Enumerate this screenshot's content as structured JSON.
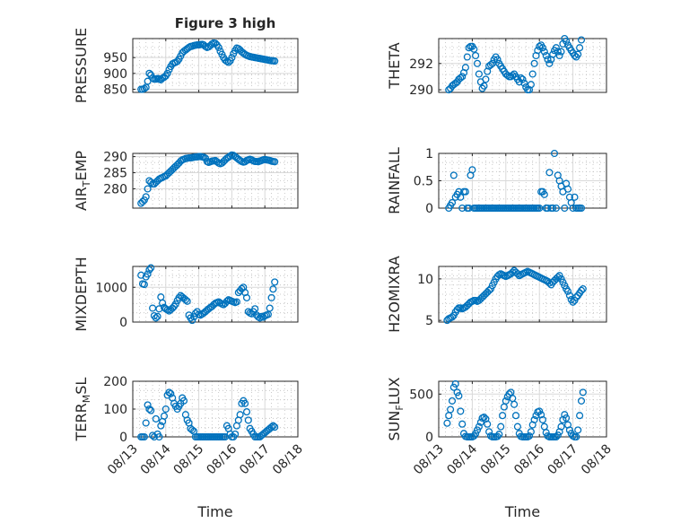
{
  "title": "Figure 3 high",
  "x_label": "Time",
  "colors": {
    "marker": "#0072bd",
    "axis": "#262626",
    "grid": "#d9d9d9"
  },
  "chart_data": [
    {
      "type": "scatter",
      "ylabel": "PRESSURE",
      "xticks": [],
      "ylim": [
        840,
        1010
      ],
      "yticks": [
        850,
        900,
        950
      ],
      "x": [
        0.25,
        0.3,
        0.35,
        0.4,
        0.45,
        0.5,
        0.55,
        0.6,
        0.65,
        0.7,
        0.75,
        0.8,
        0.85,
        0.9,
        0.95,
        1.0,
        1.05,
        1.1,
        1.15,
        1.2,
        1.25,
        1.3,
        1.35,
        1.4,
        1.45,
        1.5,
        1.55,
        1.6,
        1.65,
        1.7,
        1.75,
        1.8,
        1.85,
        1.9,
        1.95,
        2.0,
        2.05,
        2.1,
        2.15,
        2.2,
        2.25,
        2.3,
        2.35,
        2.4,
        2.45,
        2.5,
        2.55,
        2.6,
        2.65,
        2.7,
        2.75,
        2.8,
        2.85,
        2.9,
        2.95,
        3.0,
        3.05,
        3.1,
        3.15,
        3.2,
        3.25,
        3.3,
        3.35,
        3.4,
        3.45,
        3.5,
        3.55,
        3.6,
        3.65,
        3.7,
        3.75,
        3.8,
        3.85,
        3.9,
        3.95,
        4.0,
        4.05,
        4.1,
        4.15,
        4.2,
        4.25,
        4.3
      ],
      "y": [
        850,
        850,
        852,
        856,
        875,
        900,
        895,
        885,
        882,
        882,
        884,
        882,
        880,
        885,
        888,
        892,
        900,
        912,
        922,
        930,
        933,
        935,
        938,
        945,
        955,
        965,
        970,
        974,
        978,
        982,
        985,
        986,
        988,
        989,
        990,
        990,
        991,
        992,
        990,
        985,
        982,
        984,
        988,
        993,
        996,
        995,
        990,
        982,
        970,
        960,
        950,
        942,
        938,
        935,
        940,
        950,
        962,
        972,
        980,
        978,
        974,
        968,
        964,
        960,
        957,
        955,
        953,
        952,
        951,
        950,
        949,
        948,
        947,
        946,
        945,
        944,
        943,
        942,
        941,
        940,
        940,
        939
      ]
    },
    {
      "type": "scatter",
      "ylabel": "THETA",
      "xticks": [],
      "ylim": [
        289.8,
        293.9
      ],
      "yticks": [
        290,
        292
      ],
      "x": [
        0.3,
        0.35,
        0.4,
        0.45,
        0.5,
        0.55,
        0.6,
        0.65,
        0.7,
        0.75,
        0.8,
        0.85,
        0.9,
        0.95,
        1.0,
        1.05,
        1.1,
        1.15,
        1.2,
        1.25,
        1.3,
        1.35,
        1.4,
        1.45,
        1.5,
        1.55,
        1.6,
        1.65,
        1.7,
        1.75,
        1.8,
        1.85,
        1.9,
        1.95,
        2.0,
        2.05,
        2.1,
        2.15,
        2.2,
        2.25,
        2.3,
        2.35,
        2.4,
        2.45,
        2.5,
        2.55,
        2.6,
        2.65,
        2.7,
        2.75,
        2.8,
        2.85,
        2.9,
        2.95,
        3.0,
        3.05,
        3.1,
        3.15,
        3.2,
        3.25,
        3.3,
        3.35,
        3.4,
        3.45,
        3.5,
        3.55,
        3.6,
        3.65,
        3.7,
        3.75,
        3.8,
        3.85,
        3.9,
        3.95,
        4.0,
        4.05,
        4.1,
        4.15,
        4.2,
        4.25
      ],
      "y": [
        290.0,
        290.1,
        290.3,
        290.4,
        290.5,
        290.6,
        290.8,
        290.9,
        291.0,
        291.3,
        291.7,
        292.5,
        293.2,
        293.3,
        293.3,
        293.1,
        292.6,
        292.0,
        291.2,
        290.6,
        290.1,
        290.3,
        290.8,
        291.4,
        291.8,
        291.9,
        292.0,
        292.3,
        292.5,
        292.3,
        292.0,
        291.8,
        291.6,
        291.4,
        291.2,
        291.1,
        291.0,
        291.0,
        291.1,
        291.2,
        291.0,
        290.8,
        290.6,
        290.9,
        290.8,
        290.5,
        290.2,
        290.0,
        290.0,
        290.4,
        291.2,
        292.0,
        292.6,
        293.0,
        293.3,
        293.4,
        293.2,
        292.9,
        292.6,
        292.3,
        292.0,
        292.3,
        292.7,
        293.0,
        293.2,
        292.9,
        292.6,
        292.9,
        293.5,
        293.9,
        293.7,
        293.4,
        293.2,
        293.0,
        292.8,
        292.6,
        292.5,
        292.7,
        293.2,
        293.8
      ]
    },
    {
      "type": "scatter",
      "ylabel": "AIR_TEMP",
      "xticks": [],
      "ylim": [
        274,
        291
      ],
      "yticks": [
        280,
        285,
        290
      ],
      "x": [
        0.25,
        0.3,
        0.35,
        0.4,
        0.45,
        0.5,
        0.55,
        0.6,
        0.65,
        0.7,
        0.75,
        0.8,
        0.85,
        0.9,
        0.95,
        1.0,
        1.05,
        1.1,
        1.15,
        1.2,
        1.25,
        1.3,
        1.35,
        1.4,
        1.45,
        1.5,
        1.55,
        1.6,
        1.65,
        1.7,
        1.75,
        1.8,
        1.85,
        1.9,
        1.95,
        2.0,
        2.05,
        2.1,
        2.15,
        2.2,
        2.25,
        2.3,
        2.35,
        2.4,
        2.45,
        2.5,
        2.55,
        2.6,
        2.65,
        2.7,
        2.75,
        2.8,
        2.85,
        2.9,
        2.95,
        3.0,
        3.05,
        3.1,
        3.15,
        3.2,
        3.25,
        3.3,
        3.35,
        3.4,
        3.45,
        3.5,
        3.55,
        3.6,
        3.65,
        3.7,
        3.75,
        3.8,
        3.85,
        3.9,
        3.95,
        4.0,
        4.05,
        4.1,
        4.15,
        4.2,
        4.25,
        4.3
      ],
      "y": [
        275.5,
        276.0,
        276.5,
        277.5,
        280.0,
        282.5,
        282.0,
        281.5,
        281.5,
        282.0,
        282.5,
        283.0,
        283.3,
        283.5,
        283.8,
        284.0,
        284.5,
        285.0,
        285.5,
        286.0,
        286.5,
        287.0,
        287.5,
        288.0,
        288.6,
        289.0,
        289.2,
        289.4,
        289.5,
        289.6,
        289.6,
        289.7,
        289.8,
        289.9,
        289.9,
        290.0,
        290.0,
        289.9,
        289.8,
        289.5,
        288.5,
        288.2,
        288.4,
        288.6,
        288.7,
        288.8,
        288.4,
        288.0,
        287.8,
        288.0,
        288.5,
        289.0,
        289.5,
        289.8,
        290.2,
        290.5,
        290.4,
        290.0,
        289.6,
        289.2,
        288.8,
        288.5,
        288.3,
        288.4,
        288.8,
        289.0,
        289.2,
        289.0,
        288.7,
        288.5,
        288.5,
        288.4,
        288.6,
        288.8,
        289.0,
        289.1,
        289.0,
        288.9,
        288.8,
        288.6,
        288.5,
        288.4
      ]
    },
    {
      "type": "scatter",
      "ylabel": "RAINFALL",
      "xticks": [],
      "ylim": [
        0,
        1
      ],
      "yticks": [
        0,
        0.5,
        1
      ],
      "x": [
        0.3,
        0.35,
        0.4,
        0.45,
        0.5,
        0.55,
        0.6,
        0.65,
        0.7,
        0.75,
        0.8,
        0.85,
        0.9,
        0.95,
        1.0,
        1.05,
        1.1,
        1.15,
        1.2,
        1.25,
        1.3,
        1.35,
        1.4,
        1.45,
        1.5,
        1.55,
        1.6,
        1.65,
        1.7,
        1.75,
        1.8,
        1.85,
        1.9,
        1.95,
        2.0,
        2.05,
        2.1,
        2.15,
        2.2,
        2.25,
        2.3,
        2.35,
        2.4,
        2.45,
        2.5,
        2.55,
        2.6,
        2.65,
        2.7,
        2.75,
        2.8,
        2.85,
        2.9,
        2.95,
        3.0,
        3.05,
        3.1,
        3.15,
        3.2,
        3.25,
        3.3,
        3.35,
        3.4,
        3.45,
        3.5,
        3.55,
        3.6,
        3.65,
        3.7,
        3.75,
        3.8,
        3.85,
        3.9,
        3.95,
        4.0,
        4.05,
        4.1,
        4.15,
        4.2,
        4.25
      ],
      "y": [
        0.0,
        0.05,
        0.1,
        0.6,
        0.2,
        0.25,
        0.3,
        0.2,
        0.0,
        0.3,
        0.3,
        0.0,
        0.0,
        0.6,
        0.7,
        0.0,
        0.0,
        0.0,
        0.0,
        0.0,
        0.0,
        0.0,
        0.0,
        0.0,
        0.0,
        0.0,
        0.0,
        0.0,
        0.0,
        0.0,
        0.0,
        0.0,
        0.0,
        0.0,
        0.0,
        0.0,
        0.0,
        0.0,
        0.0,
        0.0,
        0.0,
        0.0,
        0.0,
        0.0,
        0.0,
        0.0,
        0.0,
        0.0,
        0.0,
        0.0,
        0.0,
        0.0,
        0.0,
        0.0,
        0.0,
        0.3,
        0.3,
        0.25,
        0.0,
        0.0,
        0.65,
        0.0,
        0.0,
        1.0,
        0.0,
        0.6,
        0.5,
        0.4,
        0.3,
        0.0,
        0.45,
        0.35,
        0.2,
        0.1,
        0.0,
        0.2,
        0.0,
        0.0,
        0.0,
        0.0
      ]
    },
    {
      "type": "scatter",
      "ylabel": "MIXDEPTH",
      "xticks": [],
      "ylim": [
        0,
        1600
      ],
      "yticks": [
        0,
        1000
      ],
      "x": [
        0.25,
        0.3,
        0.35,
        0.4,
        0.45,
        0.5,
        0.55,
        0.6,
        0.65,
        0.7,
        0.75,
        0.8,
        0.85,
        0.9,
        0.95,
        1.0,
        1.05,
        1.1,
        1.15,
        1.2,
        1.25,
        1.3,
        1.35,
        1.4,
        1.45,
        1.5,
        1.55,
        1.6,
        1.65,
        1.7,
        1.75,
        1.8,
        1.85,
        1.9,
        1.95,
        2.0,
        2.05,
        2.1,
        2.15,
        2.2,
        2.25,
        2.3,
        2.35,
        2.4,
        2.45,
        2.5,
        2.55,
        2.6,
        2.65,
        2.7,
        2.75,
        2.8,
        2.85,
        2.9,
        2.95,
        3.0,
        3.05,
        3.1,
        3.15,
        3.2,
        3.25,
        3.3,
        3.35,
        3.4,
        3.45,
        3.5,
        3.55,
        3.6,
        3.65,
        3.7,
        3.75,
        3.8,
        3.85,
        3.9,
        3.95,
        4.0,
        4.05,
        4.1,
        4.15,
        4.2,
        4.25,
        4.3
      ],
      "y": [
        1350,
        1100,
        1080,
        1300,
        1380,
        1500,
        1560,
        400,
        180,
        120,
        160,
        380,
        720,
        550,
        420,
        380,
        350,
        320,
        360,
        400,
        450,
        520,
        620,
        700,
        760,
        720,
        680,
        640,
        600,
        200,
        120,
        50,
        150,
        250,
        300,
        220,
        200,
        230,
        260,
        300,
        340,
        380,
        420,
        450,
        500,
        540,
        560,
        580,
        550,
        520,
        500,
        540,
        600,
        640,
        620,
        600,
        580,
        560,
        580,
        850,
        900,
        960,
        1000,
        850,
        700,
        300,
        260,
        240,
        300,
        380,
        200,
        150,
        120,
        160,
        140,
        180,
        200,
        220,
        400,
        700,
        950,
        1150
      ]
    },
    {
      "type": "scatter",
      "ylabel": "H2OMIXRA",
      "xticks": [],
      "ylim": [
        4.8,
        11.5
      ],
      "yticks": [
        5,
        10
      ],
      "x": [
        0.25,
        0.3,
        0.35,
        0.4,
        0.45,
        0.5,
        0.55,
        0.6,
        0.65,
        0.7,
        0.75,
        0.8,
        0.85,
        0.9,
        0.95,
        1.0,
        1.05,
        1.1,
        1.15,
        1.2,
        1.25,
        1.3,
        1.35,
        1.4,
        1.45,
        1.5,
        1.55,
        1.6,
        1.65,
        1.7,
        1.75,
        1.8,
        1.85,
        1.9,
        1.95,
        2.0,
        2.05,
        2.1,
        2.15,
        2.2,
        2.25,
        2.3,
        2.35,
        2.4,
        2.45,
        2.5,
        2.55,
        2.6,
        2.65,
        2.7,
        2.75,
        2.8,
        2.85,
        2.9,
        2.95,
        3.0,
        3.05,
        3.1,
        3.15,
        3.2,
        3.25,
        3.3,
        3.35,
        3.4,
        3.45,
        3.5,
        3.55,
        3.6,
        3.65,
        3.7,
        3.75,
        3.8,
        3.85,
        3.9,
        3.95,
        4.0,
        4.05,
        4.1,
        4.15,
        4.2,
        4.25,
        4.3
      ],
      "y": [
        5.0,
        5.2,
        5.3,
        5.4,
        5.6,
        6.0,
        6.3,
        6.5,
        6.5,
        6.4,
        6.5,
        6.6,
        6.8,
        7.0,
        7.2,
        7.3,
        7.4,
        7.4,
        7.3,
        7.4,
        7.6,
        7.8,
        8.0,
        8.2,
        8.4,
        8.6,
        8.8,
        9.2,
        9.6,
        10.0,
        10.3,
        10.5,
        10.6,
        10.5,
        10.4,
        10.3,
        10.4,
        10.5,
        10.6,
        10.8,
        11.0,
        10.8,
        10.6,
        10.4,
        10.5,
        10.6,
        10.7,
        10.8,
        10.9,
        10.8,
        10.7,
        10.6,
        10.5,
        10.4,
        10.3,
        10.2,
        10.1,
        10.0,
        9.9,
        9.8,
        9.7,
        9.5,
        9.3,
        9.6,
        9.8,
        10.0,
        10.2,
        10.4,
        10.0,
        9.6,
        9.2,
        8.8,
        8.5,
        8.0,
        7.5,
        7.2,
        7.4,
        7.8,
        8.0,
        8.3,
        8.6,
        8.8
      ]
    },
    {
      "type": "scatter",
      "ylabel": "TERR_MSL",
      "xlabel": "Time",
      "xticks": [
        "08/13",
        "08/14",
        "08/15",
        "08/16",
        "08/17",
        "08/18"
      ],
      "ylim": [
        0,
        200
      ],
      "yticks": [
        0,
        100,
        200
      ],
      "x": [
        0.25,
        0.3,
        0.35,
        0.4,
        0.45,
        0.5,
        0.55,
        0.6,
        0.65,
        0.7,
        0.75,
        0.8,
        0.85,
        0.9,
        0.95,
        1.0,
        1.05,
        1.1,
        1.15,
        1.2,
        1.25,
        1.3,
        1.35,
        1.4,
        1.45,
        1.5,
        1.55,
        1.6,
        1.65,
        1.7,
        1.75,
        1.8,
        1.85,
        1.9,
        1.95,
        2.0,
        2.05,
        2.1,
        2.15,
        2.2,
        2.25,
        2.3,
        2.35,
        2.4,
        2.45,
        2.5,
        2.55,
        2.6,
        2.65,
        2.7,
        2.75,
        2.8,
        2.85,
        2.9,
        2.95,
        3.0,
        3.05,
        3.1,
        3.15,
        3.2,
        3.25,
        3.3,
        3.35,
        3.4,
        3.45,
        3.5,
        3.55,
        3.6,
        3.65,
        3.7,
        3.75,
        3.8,
        3.85,
        3.9,
        3.95,
        4.0,
        4.05,
        4.1,
        4.15,
        4.2,
        4.25,
        4.3
      ],
      "y": [
        0,
        0,
        0,
        50,
        115,
        100,
        95,
        5,
        0,
        65,
        10,
        0,
        40,
        55,
        75,
        100,
        150,
        160,
        155,
        140,
        120,
        110,
        100,
        110,
        120,
        140,
        130,
        80,
        60,
        50,
        30,
        25,
        20,
        0,
        0,
        0,
        0,
        0,
        0,
        0,
        0,
        0,
        0,
        0,
        0,
        0,
        0,
        0,
        0,
        0,
        0,
        0,
        40,
        30,
        10,
        0,
        0,
        10,
        40,
        60,
        80,
        120,
        130,
        120,
        90,
        60,
        30,
        20,
        10,
        0,
        0,
        0,
        0,
        5,
        10,
        15,
        20,
        25,
        30,
        35,
        40,
        35
      ]
    },
    {
      "type": "scatter",
      "ylabel": "SUN_FLUX",
      "xlabel": "Time",
      "xticks": [
        "08/13",
        "08/14",
        "08/15",
        "08/16",
        "08/17",
        "08/18"
      ],
      "ylim": [
        0,
        650
      ],
      "yticks": [
        0,
        500
      ],
      "x": [
        0.25,
        0.3,
        0.35,
        0.4,
        0.45,
        0.5,
        0.55,
        0.6,
        0.65,
        0.7,
        0.75,
        0.8,
        0.85,
        0.9,
        0.95,
        1.0,
        1.05,
        1.1,
        1.15,
        1.2,
        1.25,
        1.3,
        1.35,
        1.4,
        1.45,
        1.5,
        1.55,
        1.6,
        1.65,
        1.7,
        1.75,
        1.8,
        1.85,
        1.9,
        1.95,
        2.0,
        2.05,
        2.1,
        2.15,
        2.2,
        2.25,
        2.3,
        2.35,
        2.4,
        2.45,
        2.5,
        2.55,
        2.6,
        2.65,
        2.7,
        2.75,
        2.8,
        2.85,
        2.9,
        2.95,
        3.0,
        3.05,
        3.1,
        3.15,
        3.2,
        3.25,
        3.3,
        3.35,
        3.4,
        3.45,
        3.5,
        3.55,
        3.6,
        3.65,
        3.7,
        3.75,
        3.8,
        3.85,
        3.9,
        3.95,
        4.0,
        4.05,
        4.1,
        4.15,
        4.2,
        4.25,
        4.3
      ],
      "y": [
        160,
        250,
        320,
        420,
        580,
        620,
        520,
        480,
        300,
        150,
        40,
        5,
        0,
        0,
        0,
        0,
        10,
        40,
        80,
        120,
        170,
        220,
        230,
        210,
        150,
        60,
        10,
        0,
        0,
        0,
        5,
        30,
        120,
        250,
        350,
        420,
        470,
        500,
        520,
        450,
        380,
        250,
        120,
        40,
        5,
        0,
        0,
        0,
        0,
        10,
        60,
        140,
        200,
        250,
        290,
        300,
        260,
        200,
        120,
        50,
        10,
        0,
        0,
        0,
        0,
        0,
        20,
        60,
        120,
        200,
        260,
        220,
        140,
        80,
        40,
        10,
        0,
        0,
        80,
        250,
        420,
        520
      ]
    }
  ]
}
